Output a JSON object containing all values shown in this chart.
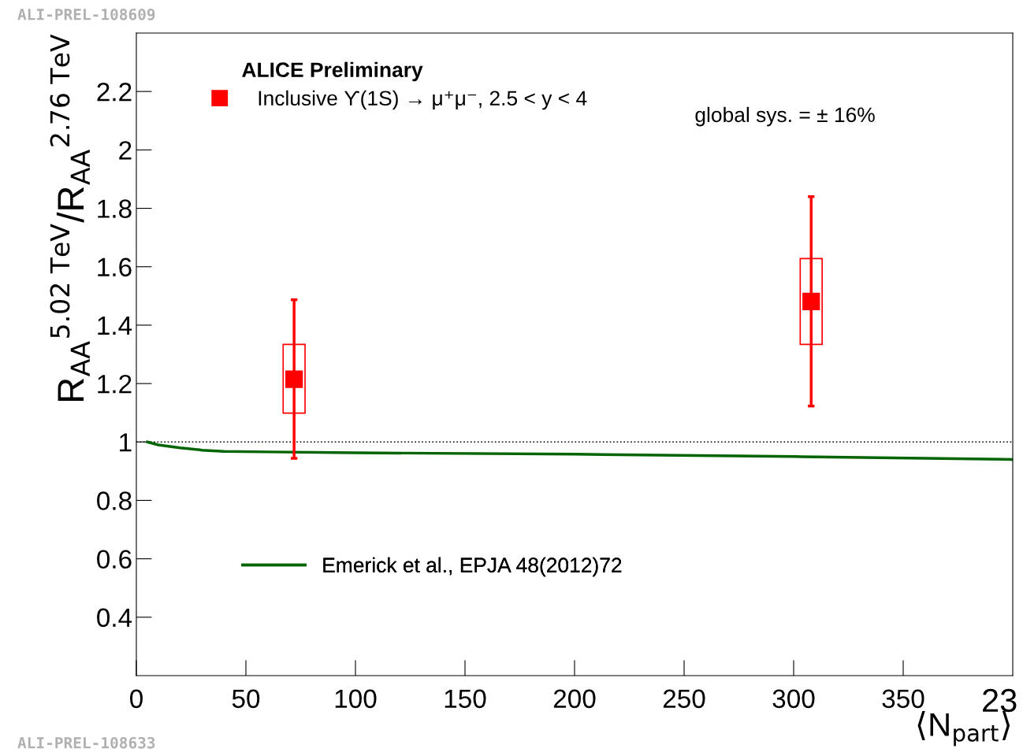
{
  "chart_data": {
    "type": "scatter",
    "xlabel": "⟨N$_{part}$⟩",
    "ylabel": "R$_{AA}$$^{5.02 TeV}$/R$_{AA}$$^{2.76 TeV}$",
    "xlim": [
      0,
      400
    ],
    "xticks": [
      0,
      50,
      100,
      150,
      200,
      250,
      300,
      350
    ],
    "ylim": [
      0.2,
      2.4
    ],
    "yticks": [
      0.4,
      0.6,
      0.8,
      1,
      1.2,
      1.4,
      1.6,
      1.8,
      2,
      2.2
    ],
    "grid": false,
    "legend": "top left",
    "series": [
      {
        "name": "Inclusive ϒ(1S) → μ⁺μ⁻, 2.5 < y < 4",
        "marker": "square",
        "color": "#ff0000",
        "x": [
          72,
          308
        ],
        "values": [
          1.215,
          1.481
        ],
        "errors": [
          [
            0.944,
            1.487
          ],
          [
            1.123,
            1.84
          ]
        ]
      },
      {
        "type": "bar",
        "color": "#ff0000",
        "x": [
          72,
          308
        ],
        "base": [
          1.099,
          1.334
        ],
        "values": [
          0.235,
          0.294
        ]
      },
      {
        "name": "Emerick et al., EPJA 48(2012)72",
        "type": "line",
        "color": "#006400",
        "x": [
          5,
          10,
          20,
          30,
          40,
          60,
          100,
          200,
          300,
          400
        ],
        "values": [
          1.0,
          0.99,
          0.98,
          0.972,
          0.968,
          0.966,
          0.963,
          0.958,
          0.95,
          0.94
        ]
      }
    ],
    "ref_lines": [
      {
        "axis": "y",
        "value": 1,
        "color": "#000000",
        "line_style": "dotted"
      }
    ],
    "annotations": [
      "ALICE Preliminary",
      "global sys. = ± 16%",
      "ALI-PREL-108609",
      "ALI-PREL-108633",
      "23"
    ]
  }
}
